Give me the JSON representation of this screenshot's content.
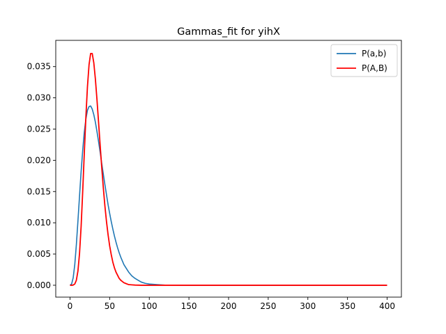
{
  "chart_data": {
    "type": "line",
    "title": "Gammas_fit for yihX",
    "xlabel": "",
    "ylabel": "",
    "xlim": [
      -18,
      418
    ],
    "ylim": [
      -0.0019,
      0.0392
    ],
    "xticks": [
      0,
      50,
      100,
      150,
      200,
      250,
      300,
      350,
      400
    ],
    "xtick_labels": [
      "0",
      "50",
      "100",
      "150",
      "200",
      "250",
      "300",
      "350",
      "400"
    ],
    "yticks": [
      0,
      0.005,
      0.01,
      0.015,
      0.02,
      0.025,
      0.03,
      0.035
    ],
    "ytick_labels": [
      "0.000",
      "0.005",
      "0.010",
      "0.015",
      "0.020",
      "0.025",
      "0.030",
      "0.035"
    ],
    "grid": false,
    "legend_position": "upper right",
    "series": [
      {
        "name": "P(a,b)",
        "color": "#1f77b4",
        "points": [
          [
            0,
            0
          ],
          [
            2,
            0.0002
          ],
          [
            4,
            0.0012
          ],
          [
            6,
            0.0033
          ],
          [
            8,
            0.0065
          ],
          [
            10,
            0.0103
          ],
          [
            12,
            0.0143
          ],
          [
            14,
            0.0182
          ],
          [
            16,
            0.0216
          ],
          [
            18,
            0.0245
          ],
          [
            20,
            0.0266
          ],
          [
            22,
            0.028
          ],
          [
            24,
            0.0286
          ],
          [
            26,
            0.0287
          ],
          [
            28,
            0.0282
          ],
          [
            30,
            0.0273
          ],
          [
            32,
            0.0261
          ],
          [
            34,
            0.0246
          ],
          [
            36,
            0.023
          ],
          [
            38,
            0.0213
          ],
          [
            40,
            0.0195
          ],
          [
            42,
            0.0178
          ],
          [
            44,
            0.0161
          ],
          [
            46,
            0.0145
          ],
          [
            48,
            0.0129
          ],
          [
            50,
            0.0115
          ],
          [
            52,
            0.0102
          ],
          [
            54,
            0.009
          ],
          [
            56,
            0.0079
          ],
          [
            58,
            0.0069
          ],
          [
            60,
            0.006
          ],
          [
            62,
            0.0052
          ],
          [
            64,
            0.0045
          ],
          [
            66,
            0.0039
          ],
          [
            68,
            0.0033
          ],
          [
            70,
            0.0029
          ],
          [
            74,
            0.0021
          ],
          [
            78,
            0.0015
          ],
          [
            82,
            0.0011
          ],
          [
            86,
            0.0008
          ],
          [
            90,
            0.0005
          ],
          [
            95,
            0.0003
          ],
          [
            100,
            0.0002
          ],
          [
            110,
            0.0001
          ],
          [
            120,
            2e-05
          ],
          [
            150,
            0
          ],
          [
            200,
            0
          ],
          [
            250,
            0
          ],
          [
            300,
            0
          ],
          [
            350,
            0
          ],
          [
            400,
            0
          ]
        ]
      },
      {
        "name": "P(A,B)",
        "color": "#ff0000",
        "points": [
          [
            0,
            0
          ],
          [
            2,
            0.0
          ],
          [
            4,
            3e-05
          ],
          [
            6,
            0.0002
          ],
          [
            8,
            0.0008
          ],
          [
            10,
            0.0023
          ],
          [
            12,
            0.0051
          ],
          [
            14,
            0.0094
          ],
          [
            16,
            0.015
          ],
          [
            18,
            0.0211
          ],
          [
            20,
            0.0269
          ],
          [
            22,
            0.0318
          ],
          [
            24,
            0.0353
          ],
          [
            26,
            0.0371
          ],
          [
            28,
            0.0371
          ],
          [
            30,
            0.0356
          ],
          [
            32,
            0.033
          ],
          [
            34,
            0.0297
          ],
          [
            36,
            0.0261
          ],
          [
            38,
            0.0224
          ],
          [
            40,
            0.0189
          ],
          [
            42,
            0.0156
          ],
          [
            44,
            0.0127
          ],
          [
            46,
            0.0102
          ],
          [
            48,
            0.0081
          ],
          [
            50,
            0.0063
          ],
          [
            52,
            0.0049
          ],
          [
            54,
            0.0037
          ],
          [
            56,
            0.0028
          ],
          [
            58,
            0.0021
          ],
          [
            60,
            0.0016
          ],
          [
            62,
            0.0011
          ],
          [
            64,
            0.0008
          ],
          [
            66,
            0.0006
          ],
          [
            68,
            0.0004
          ],
          [
            70,
            0.0003
          ],
          [
            74,
            0.0001
          ],
          [
            78,
            6e-05
          ],
          [
            82,
            3e-05
          ],
          [
            90,
            0.0
          ],
          [
            100,
            0
          ],
          [
            150,
            0
          ],
          [
            200,
            0
          ],
          [
            250,
            0
          ],
          [
            300,
            0
          ],
          [
            350,
            0
          ],
          [
            400,
            0
          ]
        ]
      }
    ]
  }
}
